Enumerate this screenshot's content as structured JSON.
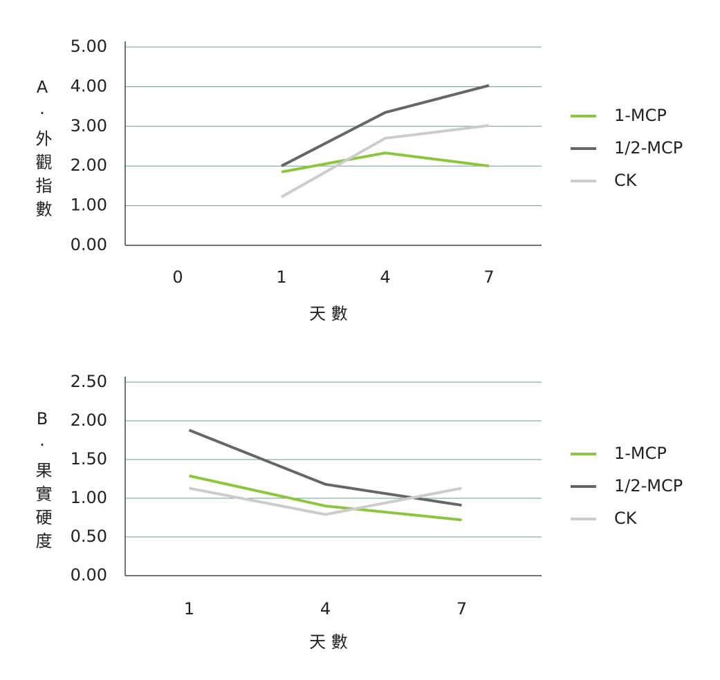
{
  "chart_data": [
    {
      "type": "line",
      "ylabel": "A·外觀指數",
      "xlabel": "天 數",
      "categories": [
        "0",
        "1",
        "4",
        "7"
      ],
      "series": [
        {
          "name": "1-MCP",
          "color": "#8cc63f",
          "values": [
            null,
            1.85,
            2.33,
            2.0
          ]
        },
        {
          "name": "1/2-MCP",
          "color": "#666666",
          "values": [
            null,
            2.0,
            3.35,
            4.03
          ]
        },
        {
          "name": "CK",
          "color": "#cccccc",
          "values": [
            null,
            1.22,
            2.7,
            3.02
          ]
        }
      ],
      "ylim": [
        0,
        5
      ],
      "yticks": [
        {
          "value": 0,
          "label": "0.00"
        },
        {
          "value": 1,
          "label": "1.00"
        },
        {
          "value": 2,
          "label": "2.00"
        },
        {
          "value": 3,
          "label": "3.00"
        },
        {
          "value": 4,
          "label": "4.00"
        },
        {
          "value": 5,
          "label": "5.00"
        }
      ],
      "grid": true,
      "legend": "right"
    },
    {
      "type": "line",
      "ylabel": "B·果實硬度",
      "xlabel": "天 數",
      "categories": [
        "1",
        "4",
        "7"
      ],
      "series": [
        {
          "name": "1-MCP",
          "color": "#8cc63f",
          "values": [
            1.29,
            0.9,
            0.72
          ]
        },
        {
          "name": "1/2-MCP",
          "color": "#666666",
          "values": [
            1.88,
            1.18,
            0.91
          ]
        },
        {
          "name": "CK",
          "color": "#cccccc",
          "values": [
            1.13,
            0.79,
            1.13
          ]
        }
      ],
      "ylim": [
        0,
        2.5
      ],
      "yticks": [
        {
          "value": 0,
          "label": "0.00"
        },
        {
          "value": 0.5,
          "label": "0.50"
        },
        {
          "value": 1,
          "label": "1.00"
        },
        {
          "value": 1.5,
          "label": "1.50"
        },
        {
          "value": 2,
          "label": "2.00"
        },
        {
          "value": 2.5,
          "label": "2.50"
        }
      ],
      "grid": true,
      "legend": "right"
    }
  ]
}
